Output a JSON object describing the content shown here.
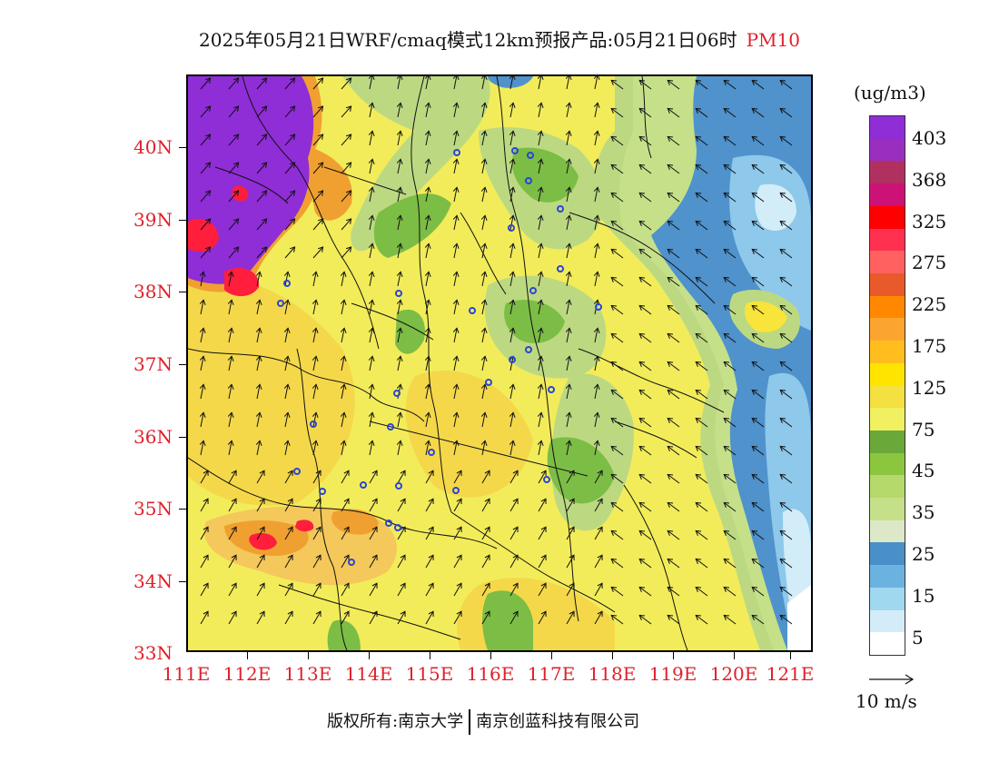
{
  "header": {
    "title": "2025年05月21日WRF/cmaq模式12km预报产品:05月21日06时",
    "variable": "PM10"
  },
  "axes": {
    "lat_labels": [
      "40N",
      "39N",
      "38N",
      "37N",
      "36N",
      "35N",
      "34N",
      "33N"
    ],
    "lon_labels": [
      "111E",
      "112E",
      "113E",
      "114E",
      "115E",
      "116E",
      "117E",
      "118E",
      "119E",
      "120E",
      "121E"
    ],
    "lon_range": [
      111,
      121.3
    ],
    "lat_range": [
      33,
      40.95
    ]
  },
  "legend": {
    "unit": "(ug/m3)",
    "labels": [
      "403",
      "368",
      "325",
      "275",
      "225",
      "175",
      "125",
      "75",
      "45",
      "35",
      "25",
      "15",
      "5"
    ],
    "colors": [
      "#8f2dd6",
      "#9a2fbf",
      "#b03060",
      "#cc1177",
      "#ff0000",
      "#ff3050",
      "#ff6060",
      "#e85a2a",
      "#ff8800",
      "#fba530",
      "#ffbe1e",
      "#ffe400",
      "#f4e040",
      "#f0f060",
      "#6aa83a",
      "#8cc63f",
      "#b5d96a",
      "#c6e08a",
      "#dde8c8",
      "#4a90c8",
      "#6cb2e0",
      "#a0d8f0",
      "#d4ecf8",
      "#ffffff"
    ]
  },
  "wind_reference": {
    "label": "10 m/s"
  },
  "footer": {
    "copyright": "版权所有:南京大学",
    "company": "南京创蓝科技有限公司"
  },
  "map": {
    "region_colors": {
      "background": "#f2ec5a",
      "high_north": "#8f2dd6",
      "red_core": "#ff1e3c",
      "orange": "#f0a030",
      "light_orange": "#f4c85a",
      "green": "#7cbd45",
      "light_green": "#bcd982",
      "blue": "#4f92cc",
      "light_blue": "#8ec8ea",
      "pale_blue": "#d2ecf8",
      "yellow": "#f8e43a"
    },
    "cities": [
      "109,228",
      "102,250",
      "232,239",
      "296,84",
      "377,87",
      "410,146",
      "356,167",
      "380,236",
      "375,301",
      "331,337",
      "357,312",
      "138,383",
      "120,435",
      "148,457",
      "193,450",
      "180,535",
      "232,451",
      "221,492",
      "231,497",
      "223,386",
      "230,349",
      "268,414",
      "295,456",
      "395,444",
      "452,254",
      "313,258",
      "400,345",
      "375,115",
      "410,212",
      "360,82"
    ]
  }
}
